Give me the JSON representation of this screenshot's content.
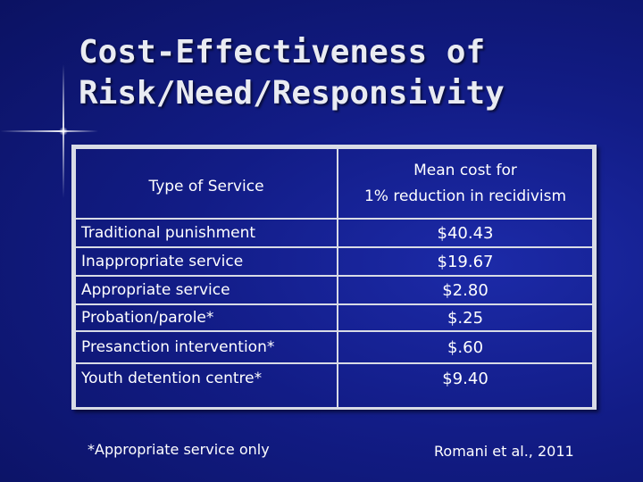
{
  "slide": {
    "title_line1": "Cost-Effectiveness of",
    "title_line2": "Risk/Need/Responsivity"
  },
  "table": {
    "header": {
      "col1": "Type of Service",
      "col2_line1": "Mean cost for",
      "col2_line2": "1% reduction in recidivism"
    },
    "rows": [
      {
        "type": "Traditional punishment",
        "cost": "$40.43"
      },
      {
        "type": "Inappropriate service",
        "cost": "$19.67"
      },
      {
        "type": "Appropriate service",
        "cost": "$2.80"
      },
      {
        "type": "Probation/parole*",
        "cost": "$.25"
      },
      {
        "type": "Presanction intervention*",
        "cost": "$.60"
      },
      {
        "type": "Youth detention centre*",
        "cost": "$9.40"
      }
    ]
  },
  "footnote": "*Appropriate service only",
  "citation": "Romani et al., 2011",
  "colors": {
    "background": "#121c86",
    "text": "#ffffff",
    "border": "#d8dbe6"
  }
}
